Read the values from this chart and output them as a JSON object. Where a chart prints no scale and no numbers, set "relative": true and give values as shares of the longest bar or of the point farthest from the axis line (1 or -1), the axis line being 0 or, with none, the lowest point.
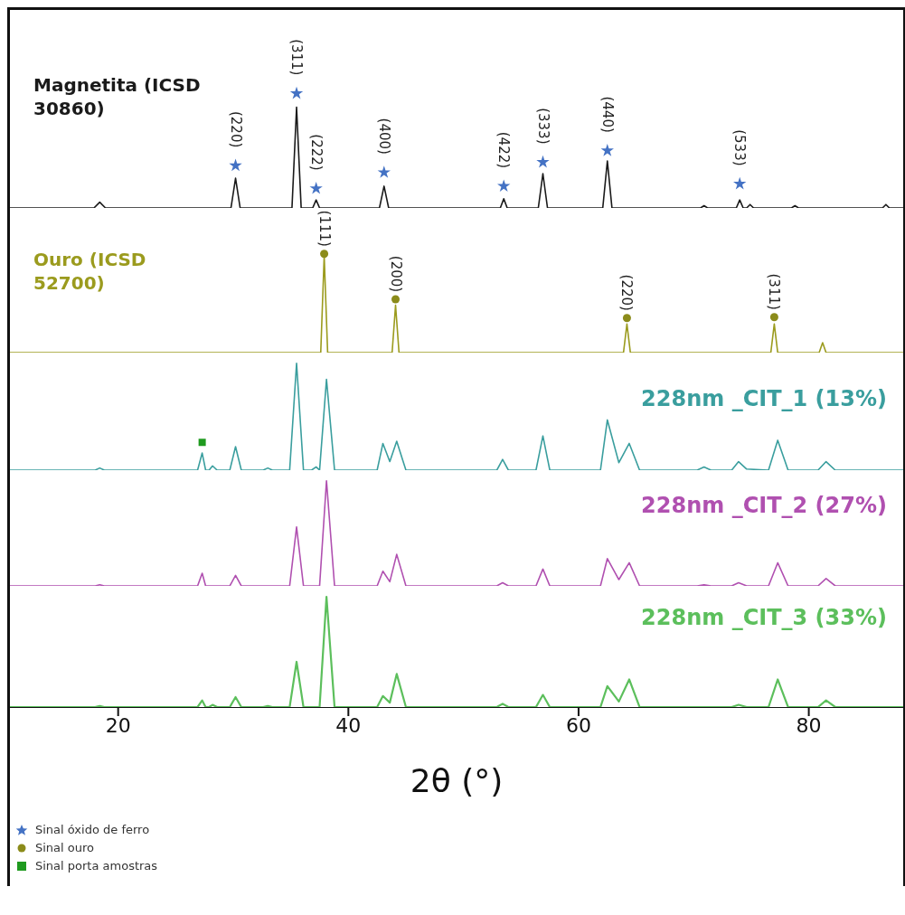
{
  "chart_data": [
    {
      "type": "line",
      "relative": true,
      "xlim": [
        10.6,
        88.2
      ],
      "tick_labels": false,
      "legend": "bottom left",
      "series": [
        {
          "name": "Magnetita (ICSD 30860)",
          "color": "#1a1a1a",
          "x": [
            10.6,
            17.9,
            18.4,
            18.9,
            29.8,
            30.2,
            30.6,
            35.1,
            35.5,
            35.9,
            36.9,
            37.2,
            37.5,
            42.7,
            43.1,
            43.5,
            53.2,
            53.5,
            53.8,
            56.5,
            56.9,
            57.3,
            62.1,
            62.5,
            62.9,
            70.6,
            70.9,
            71.2,
            73.7,
            74.0,
            74.3,
            74.6,
            74.9,
            75.2,
            78.5,
            78.8,
            79.1,
            86.4,
            86.7,
            87.0,
            88.2
          ],
          "values": [
            0,
            0,
            0.05,
            0,
            0,
            0.26,
            0,
            0,
            0.88,
            0,
            0,
            0.07,
            0,
            0,
            0.19,
            0,
            0,
            0.08,
            0,
            0,
            0.3,
            0,
            0,
            0.41,
            0,
            0,
            0.02,
            0,
            0,
            0.07,
            0,
            0,
            0.03,
            0,
            0,
            0.02,
            0,
            0,
            0.03,
            0,
            0
          ]
        },
        {
          "name": "Sinal óxido de ferro",
          "type": "scatter",
          "marker": "star",
          "color": "#4472c4",
          "x": [
            30.2,
            35.5,
            37.2,
            43.1,
            53.5,
            56.9,
            62.5,
            74.0
          ],
          "values": [
            0.37,
            1,
            0.17,
            0.31,
            0.19,
            0.4,
            0.5,
            0.21
          ]
        }
      ],
      "annotations": [
        {
          "text": "(220)",
          "x": 30.2,
          "y": 0.37
        },
        {
          "text": "(311)",
          "x": 35.5,
          "y": 1
        },
        {
          "text": "(222)",
          "x": 37.2,
          "y": 0.17
        },
        {
          "text": "(400)",
          "x": 43.1,
          "y": 0.31
        },
        {
          "text": "(422)",
          "x": 53.5,
          "y": 0.19
        },
        {
          "text": "(333)",
          "x": 56.9,
          "y": 0.4
        },
        {
          "text": "(440)",
          "x": 62.5,
          "y": 0.5
        },
        {
          "text": "(533)",
          "x": 74.0,
          "y": 0.21
        }
      ]
    },
    {
      "type": "line",
      "relative": true,
      "xlim": [
        10.6,
        88.2
      ],
      "tick_labels": false,
      "legend": "bottom left",
      "series": [
        {
          "name": "Ouro (ICSD 52700)",
          "color": "#9b9b1e",
          "x": [
            10.6,
            37.6,
            37.9,
            38.2,
            43.8,
            44.1,
            44.4,
            63.9,
            64.2,
            64.5,
            76.7,
            77.0,
            77.3,
            80.9,
            81.2,
            81.5,
            88.2
          ],
          "values": [
            0,
            0,
            0.98,
            0,
            0,
            0.48,
            0,
            0,
            0.29,
            0,
            0,
            0.29,
            0,
            0,
            0.1,
            0,
            0
          ]
        },
        {
          "name": "Sinal ouro",
          "type": "scatter",
          "marker": "circle",
          "color": "#8b8b1a",
          "x": [
            37.9,
            44.1,
            64.2,
            77.0
          ],
          "values": [
            1,
            0.54,
            0.35,
            0.36
          ]
        }
      ],
      "annotations": [
        {
          "text": "(111)",
          "x": 37.9,
          "y": 1
        },
        {
          "text": "(200)",
          "x": 44.1,
          "y": 0.54
        },
        {
          "text": "(220)",
          "x": 64.2,
          "y": 0.35
        },
        {
          "text": "(311)",
          "x": 77.0,
          "y": 0.36
        }
      ]
    },
    {
      "type": "line",
      "relative": true,
      "xlim": [
        10.6,
        88.2
      ],
      "tick_labels": false,
      "legend": "bottom left",
      "series": [
        {
          "name": "228nm _CIT_1 (13%)",
          "color": "#3a9e9e",
          "x": [
            10.6,
            18.0,
            18.4,
            18.8,
            26.9,
            27.3,
            27.6,
            27.9,
            28.2,
            28.6,
            29.7,
            30.2,
            30.7,
            32.6,
            33.0,
            33.4,
            34.9,
            35.5,
            36.1,
            36.8,
            37.2,
            37.5,
            38.1,
            38.8,
            42.5,
            43.0,
            43.6,
            44.2,
            45.0,
            52.9,
            53.4,
            53.9,
            56.3,
            56.9,
            57.5,
            61.9,
            62.5,
            63.5,
            64.4,
            65.3,
            70.3,
            70.9,
            71.5,
            73.3,
            73.9,
            74.6,
            76.5,
            77.3,
            78.2,
            80.8,
            81.5,
            82.3,
            88.2
          ],
          "values": [
            0,
            0,
            0.02,
            0,
            0,
            0.16,
            0,
            0,
            0.04,
            0,
            0,
            0.22,
            0,
            0,
            0.02,
            0,
            0,
            1,
            0,
            0,
            0.03,
            0,
            0.85,
            0,
            0,
            0.25,
            0.08,
            0.27,
            0,
            0,
            0.1,
            0,
            0,
            0.32,
            0,
            0,
            0.47,
            0.07,
            0.25,
            0,
            0,
            0.03,
            0,
            0,
            0.08,
            0.01,
            0,
            0.28,
            0,
            0,
            0.08,
            0,
            0
          ]
        },
        {
          "name": "Sinal porta amostras",
          "type": "scatter",
          "marker": "square",
          "color": "#1f9a1f",
          "x": [
            27.3
          ],
          "values": [
            0.26
          ]
        }
      ]
    },
    {
      "type": "line",
      "relative": true,
      "xlim": [
        10.6,
        88.2
      ],
      "tick_labels": false,
      "series": [
        {
          "name": "228nm _CIT_2 (27%)",
          "color": "#b050b0",
          "x": [
            10.6,
            18.0,
            18.4,
            18.8,
            26.9,
            27.3,
            27.6,
            27.9,
            28.2,
            28.6,
            29.7,
            30.2,
            30.7,
            32.6,
            33.0,
            33.4,
            34.9,
            35.5,
            36.1,
            36.8,
            37.2,
            37.5,
            38.1,
            38.8,
            42.5,
            43.0,
            43.6,
            44.2,
            45.0,
            52.9,
            53.4,
            53.9,
            56.3,
            56.9,
            57.5,
            61.9,
            62.5,
            63.5,
            64.4,
            65.3,
            70.3,
            70.9,
            71.5,
            73.3,
            73.9,
            74.6,
            76.5,
            77.3,
            78.2,
            80.8,
            81.5,
            82.3,
            88.2
          ],
          "values": [
            0,
            0,
            0.01,
            0,
            0,
            0.12,
            0,
            0,
            0,
            0,
            0,
            0.1,
            0,
            0,
            0,
            0,
            0,
            0.56,
            0,
            0,
            0,
            0,
            1,
            0,
            0,
            0.14,
            0.04,
            0.3,
            0,
            0,
            0.03,
            0,
            0,
            0.16,
            0,
            0,
            0.26,
            0.06,
            0.22,
            0,
            0,
            0.01,
            0,
            0,
            0.03,
            0,
            0,
            0.22,
            0,
            0,
            0.07,
            0,
            0
          ]
        }
      ]
    },
    {
      "type": "line",
      "relative": true,
      "xlim": [
        10.6,
        88.2
      ],
      "xticks": [
        20,
        40,
        60,
        80
      ],
      "xlabel": "2θ (°)",
      "tick_labels": "x",
      "series": [
        {
          "name": "228nm _CIT_3 (33%)",
          "color": "#5cbf5c",
          "x": [
            10.6,
            18.0,
            18.4,
            18.8,
            26.9,
            27.3,
            27.6,
            27.9,
            28.2,
            28.6,
            29.7,
            30.2,
            30.7,
            32.6,
            33.0,
            33.4,
            34.9,
            35.5,
            36.1,
            36.8,
            37.2,
            37.5,
            38.1,
            38.8,
            42.5,
            43.0,
            43.6,
            44.2,
            45.0,
            52.9,
            53.4,
            53.9,
            56.3,
            56.9,
            57.5,
            61.9,
            62.5,
            63.5,
            64.4,
            65.3,
            70.3,
            70.9,
            71.5,
            73.3,
            73.9,
            74.6,
            76.5,
            77.3,
            78.2,
            80.8,
            81.5,
            82.3,
            88.2
          ],
          "values": [
            0,
            0,
            0.01,
            0,
            0,
            0.06,
            0,
            0,
            0.02,
            0,
            0,
            0.09,
            0,
            0,
            0.01,
            0,
            0,
            0.41,
            0,
            0,
            0,
            0,
            1,
            0,
            0,
            0.1,
            0.04,
            0.3,
            0,
            0,
            0.03,
            0,
            0,
            0.11,
            0,
            0,
            0.19,
            0.05,
            0.25,
            0,
            0,
            0,
            0,
            0,
            0.02,
            0,
            0,
            0.25,
            0,
            0,
            0.06,
            0,
            0
          ]
        }
      ]
    }
  ]
}
